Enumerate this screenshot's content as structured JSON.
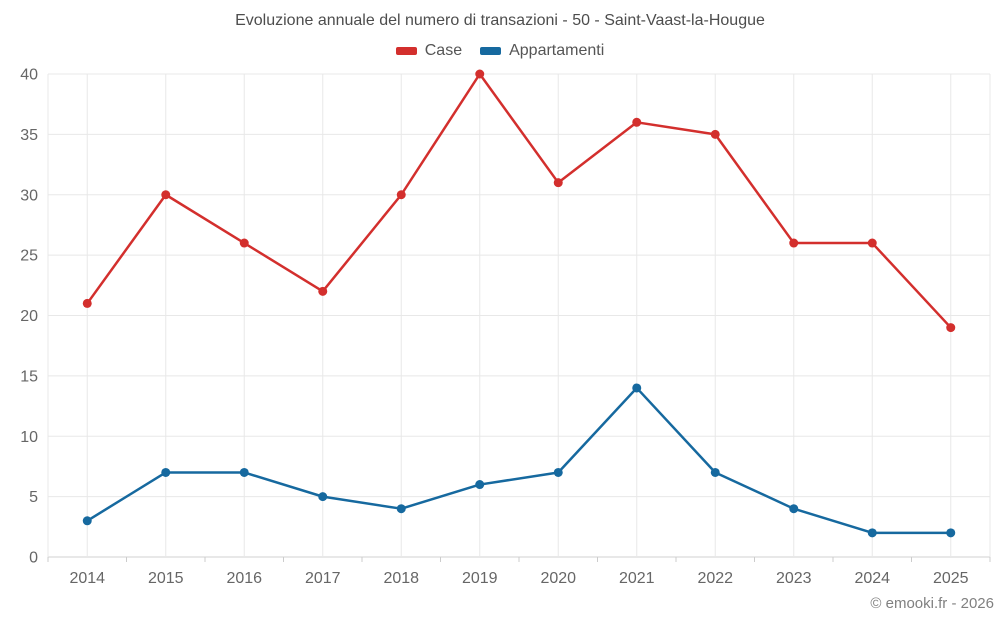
{
  "chart_data": {
    "type": "line",
    "title": "Evoluzione annuale del numero di transazioni - 50 - Saint-Vaast-la-Hougue",
    "categories": [
      "2014",
      "2015",
      "2016",
      "2017",
      "2018",
      "2019",
      "2020",
      "2021",
      "2022",
      "2023",
      "2024",
      "2025"
    ],
    "series": [
      {
        "name": "Case",
        "color": "#d32f2d",
        "values": [
          21,
          30,
          26,
          22,
          30,
          40,
          31,
          36,
          35,
          26,
          26,
          19
        ]
      },
      {
        "name": "Appartamenti",
        "color": "#16699f",
        "values": [
          3,
          7,
          7,
          5,
          4,
          6,
          7,
          14,
          7,
          4,
          2,
          2
        ]
      }
    ],
    "ylim": [
      0,
      40
    ],
    "ytick_step": 5,
    "yticks": [
      0,
      5,
      10,
      15,
      20,
      25,
      30,
      35,
      40
    ],
    "grid": true,
    "legend_position": "top",
    "xlabel": "",
    "ylabel": "",
    "colors": {
      "grid": "#e8e8e8",
      "axis_line": "#d0d0d0",
      "tick_mark": "#cccccc",
      "tick_label": "#666666"
    }
  },
  "footer": {
    "copyright": "© emooki.fr - 2026"
  }
}
